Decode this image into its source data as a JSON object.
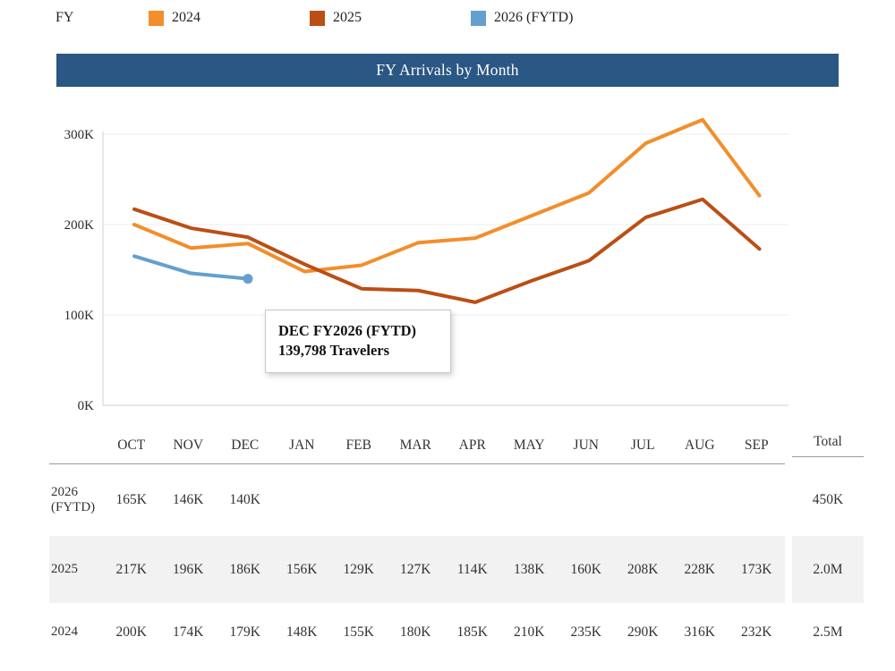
{
  "legend": {
    "label": "FY",
    "items": [
      {
        "label": "2024",
        "color": "#f28e2b"
      },
      {
        "label": "2025",
        "color": "#ba4f16"
      },
      {
        "label": "2026 (FYTD)",
        "color": "#64a0ce"
      }
    ]
  },
  "title": "FY Arrivals by Month",
  "tooltip": {
    "title": "DEC FY2026 (FYTD)",
    "value": "139,798 Travelers"
  },
  "chart_data": {
    "type": "line",
    "title": "FY Arrivals by Month",
    "categories": [
      "OCT",
      "NOV",
      "DEC",
      "JAN",
      "FEB",
      "MAR",
      "APR",
      "MAY",
      "JUN",
      "JUL",
      "AUG",
      "SEP"
    ],
    "series": [
      {
        "name": "2024",
        "color": "#f28e2b",
        "values_thousands": [
          200,
          174,
          179,
          148,
          155,
          180,
          185,
          210,
          235,
          290,
          316,
          232
        ]
      },
      {
        "name": "2025",
        "color": "#ba4f16",
        "values_thousands": [
          217,
          196,
          186,
          156,
          129,
          127,
          114,
          138,
          160,
          208,
          228,
          173
        ]
      },
      {
        "name": "2026 (FYTD)",
        "color": "#64a0ce",
        "values_thousands": [
          165,
          146,
          140
        ],
        "marker_last": true
      }
    ],
    "ylabel": "",
    "xlabel": "",
    "yticks_thousands": [
      0,
      100,
      200,
      300
    ],
    "ytick_labels": [
      "0K",
      "100K",
      "200K",
      "300K"
    ],
    "ylim_thousands": [
      0,
      340
    ],
    "grid": true,
    "legend_position": "top",
    "highlight": {
      "series": "2026 (FYTD)",
      "category": "DEC",
      "value_exact": 139798,
      "value_label": "139,798 Travelers"
    }
  },
  "table": {
    "corner_header": "",
    "total_header": "Total",
    "rows": [
      {
        "label_lines": [
          "2026",
          "(FYTD)"
        ],
        "values": [
          "165K",
          "146K",
          "140K",
          "",
          "",
          "",
          "",
          "",
          "",
          "",
          "",
          ""
        ],
        "total": "450K",
        "shaded": false
      },
      {
        "label_lines": [
          "2025"
        ],
        "values": [
          "217K",
          "196K",
          "186K",
          "156K",
          "129K",
          "127K",
          "114K",
          "138K",
          "160K",
          "208K",
          "228K",
          "173K"
        ],
        "total": "2.0M",
        "shaded": true
      },
      {
        "label_lines": [
          "2024"
        ],
        "values": [
          "200K",
          "174K",
          "179K",
          "148K",
          "155K",
          "180K",
          "185K",
          "210K",
          "235K",
          "290K",
          "316K",
          "232K"
        ],
        "total": "2.5M",
        "shaded": false
      }
    ]
  }
}
